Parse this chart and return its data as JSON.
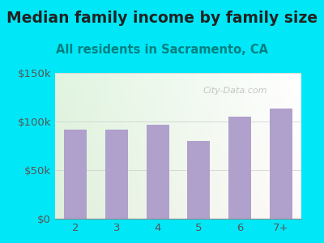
{
  "title": "Median family income by family size",
  "subtitle": "All residents in Sacramento, CA",
  "categories": [
    "2",
    "3",
    "4",
    "5",
    "6",
    "7+"
  ],
  "values": [
    92000,
    92000,
    97000,
    80000,
    105000,
    113000
  ],
  "bar_color": "#b0a0cc",
  "title_fontsize": 13.5,
  "subtitle_fontsize": 10.5,
  "tick_fontsize": 9.5,
  "ytick_labels": [
    "$0",
    "$50k",
    "$100k",
    "$150k"
  ],
  "ytick_values": [
    0,
    50000,
    100000,
    150000
  ],
  "ylim": [
    0,
    150000
  ],
  "background_outer": "#00e8f8",
  "watermark": "City-Data.com",
  "title_color": "#222222",
  "subtitle_color": "#008080",
  "tick_color": "#555555"
}
